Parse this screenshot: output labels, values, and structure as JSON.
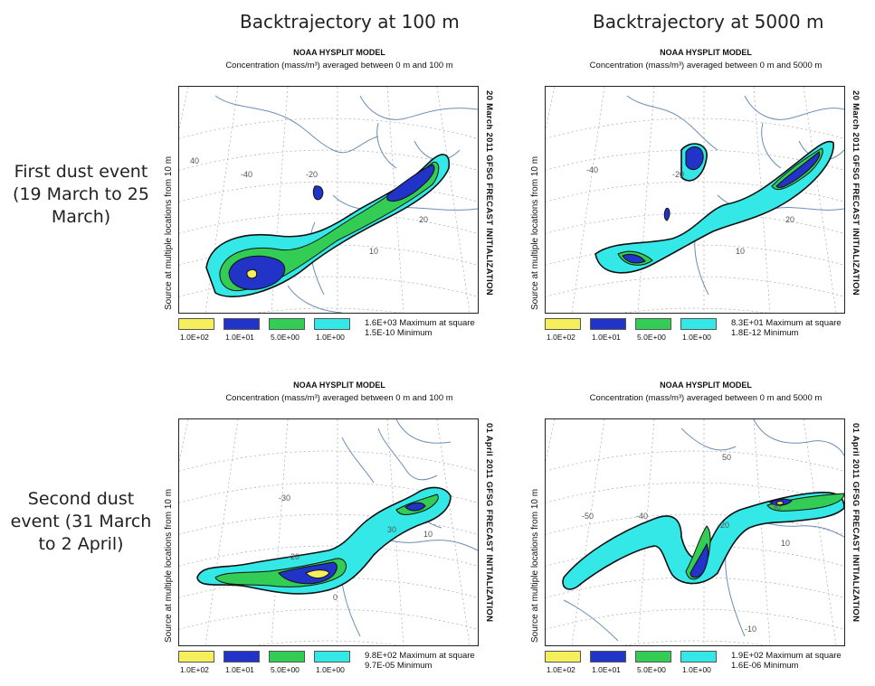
{
  "columns": [
    "Backtrajectory at 100 m",
    "Backtrajectory at 5000 m"
  ],
  "rows": [
    "First dust event (19 March to 25 March)",
    "Second dust event (31 March to 2 April)"
  ],
  "panels": [
    {
      "model_title": "NOAA HYSPLIT MODEL",
      "concentration_label": "Concentration   (mass/m³)  averaged between   0 m and 100 m",
      "source_text": "Source           at multiple locations               from      10 m",
      "init_text": "20 March 2011  GFSG  FRECAST  INITIALIZATION",
      "maximum": "1.6E+03  Maximum at square",
      "minimum": "1.5E-10   Minimum",
      "ticks": [
        "40",
        "-40",
        "-20",
        "10",
        "20"
      ]
    },
    {
      "model_title": "NOAA HYSPLIT MODEL",
      "concentration_label": "Concentration   (mass/m³)  averaged between   0 m and 5000 m",
      "source_text": "Source           at multiple locations               from      10 m",
      "init_text": "20 March 2011  GFSG  FRECAST  INITIALIZATION",
      "maximum": "8.3E+01  Maximum at square",
      "minimum": "1.8E-12   Minimum",
      "ticks": [
        "-40",
        "-20",
        "10",
        "20"
      ]
    },
    {
      "model_title": "NOAA HYSPLIT MODEL",
      "concentration_label": "Concentration   (mass/m³)  averaged between   0 m and 100 m",
      "source_text": "Source           at multiple locations               from      10 m",
      "init_text": "01 April 2011  GFSG  FRECAST  INITIALIZATION",
      "maximum": "9.8E+02  Maximum at square",
      "minimum": "9.7E-05   Minimum",
      "ticks": [
        "-30",
        "30",
        "-20",
        "0",
        "10"
      ]
    },
    {
      "model_title": "NOAA HYSPLIT MODEL",
      "concentration_label": "Concentration   (mass/m³)  averaged between   0 m and 5000 m",
      "source_text": "Source           at multiple locations               from      10 m",
      "init_text": "01 April 2011  GFSG  FRECAST  INITIALIZATION",
      "maximum": "1.9E+02  Maximum at square",
      "minimum": "1.6E-06   Minimum",
      "ticks": [
        "50",
        "-50",
        "-40",
        "-20",
        "30",
        "10",
        "-10"
      ]
    }
  ],
  "legend_levels": [
    {
      "label": "1.0E+02",
      "color": "#f4ef5a"
    },
    {
      "label": "1.0E+01",
      "color": "#2233c8"
    },
    {
      "label": "5.0E+00",
      "color": "#33cc55"
    },
    {
      "label": "1.0E+00",
      "color": "#33e8e6"
    }
  ]
}
